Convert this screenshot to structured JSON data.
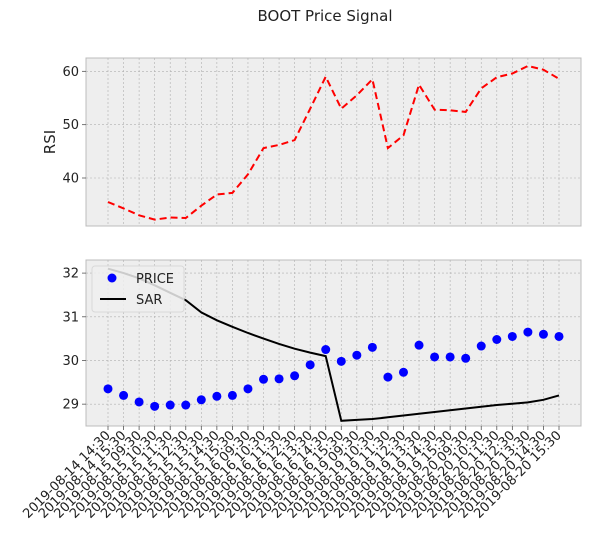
{
  "title": "BOOT Price Signal",
  "chart_data": [
    {
      "type": "line",
      "ylabel": "RSI",
      "ylim": [
        31,
        62.5
      ],
      "yticks": [
        40,
        50,
        60
      ],
      "grid": true,
      "x": [
        "2019-08-14 14:30",
        "2019-08-14 15:30",
        "2019-08-15 09:30",
        "2019-08-15 10:30",
        "2019-08-15 11:30",
        "2019-08-15 12:30",
        "2019-08-15 13:30",
        "2019-08-15 14:30",
        "2019-08-15 15:30",
        "2019-08-16 09:30",
        "2019-08-16 10:30",
        "2019-08-16 11:30",
        "2019-08-16 12:30",
        "2019-08-16 13:30",
        "2019-08-16 14:30",
        "2019-08-16 15:30",
        "2019-08-19 09:30",
        "2019-08-19 10:30",
        "2019-08-19 11:30",
        "2019-08-19 12:30",
        "2019-08-19 13:30",
        "2019-08-19 14:30",
        "2019-08-19 15:30",
        "2019-08-20 09:30",
        "2019-08-20 10:30",
        "2019-08-20 11:30",
        "2019-08-20 12:30",
        "2019-08-20 13:30",
        "2019-08-20 14:30",
        "2019-08-20 15:30"
      ],
      "series": [
        {
          "name": "RSI",
          "color": "#ff0000",
          "style": "dashed",
          "values": [
            35.5,
            34.3,
            33.0,
            32.2,
            32.6,
            32.5,
            34.8,
            36.9,
            37.2,
            40.7,
            45.6,
            46.2,
            47.1,
            53.0,
            59.0,
            53.0,
            55.5,
            58.5,
            45.6,
            48.0,
            57.5,
            52.8,
            52.7,
            52.4,
            56.8,
            58.9,
            59.6,
            61.0,
            60.3,
            58.6
          ]
        }
      ]
    },
    {
      "type": "scatter",
      "ylim": [
        28.5,
        32.3
      ],
      "yticks": [
        29,
        30,
        31,
        32
      ],
      "grid": true,
      "legend": "upper-left",
      "x": [
        "2019-08-14 14:30",
        "2019-08-14 15:30",
        "2019-08-15 09:30",
        "2019-08-15 10:30",
        "2019-08-15 11:30",
        "2019-08-15 12:30",
        "2019-08-15 13:30",
        "2019-08-15 14:30",
        "2019-08-15 15:30",
        "2019-08-16 09:30",
        "2019-08-16 10:30",
        "2019-08-16 11:30",
        "2019-08-16 12:30",
        "2019-08-16 13:30",
        "2019-08-16 14:30",
        "2019-08-16 15:30",
        "2019-08-19 09:30",
        "2019-08-19 10:30",
        "2019-08-19 11:30",
        "2019-08-19 12:30",
        "2019-08-19 13:30",
        "2019-08-19 14:30",
        "2019-08-19 15:30",
        "2019-08-20 09:30",
        "2019-08-20 10:30",
        "2019-08-20 11:30",
        "2019-08-20 12:30",
        "2019-08-20 13:30",
        "2019-08-20 14:30",
        "2019-08-20 15:30"
      ],
      "series": [
        {
          "name": "PRICE",
          "color": "#0000ff",
          "style": "markers",
          "values": [
            29.35,
            29.2,
            29.05,
            28.95,
            28.98,
            28.98,
            29.1,
            29.18,
            29.2,
            29.35,
            29.57,
            29.58,
            29.65,
            29.9,
            30.25,
            29.98,
            30.12,
            30.3,
            29.62,
            29.73,
            30.35,
            30.08,
            30.08,
            30.05,
            30.33,
            30.48,
            30.55,
            30.65,
            30.6,
            30.55
          ]
        },
        {
          "name": "SAR",
          "color": "#000000",
          "style": "solid",
          "values": [
            32.1,
            32.0,
            31.88,
            31.72,
            31.55,
            31.38,
            31.1,
            30.92,
            30.77,
            30.63,
            30.5,
            30.38,
            30.27,
            30.18,
            30.1,
            28.62,
            28.64,
            28.66,
            28.7,
            28.74,
            28.78,
            28.82,
            28.86,
            28.9,
            28.94,
            28.98,
            29.01,
            29.04,
            29.1,
            29.2
          ]
        }
      ]
    }
  ]
}
